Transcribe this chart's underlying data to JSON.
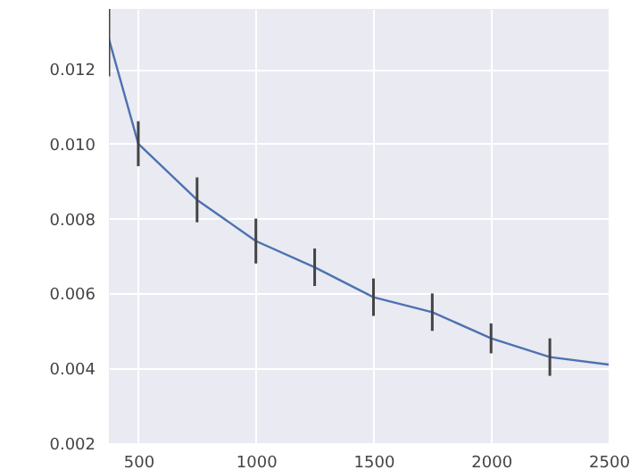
{
  "chart_data": {
    "type": "line",
    "x": [
      375,
      500,
      750,
      1000,
      1250,
      1500,
      1750,
      2000,
      2250,
      2500
    ],
    "series": [
      {
        "color": "#4c72b0",
        "values": [
          0.0128,
          0.01,
          0.0085,
          0.0074,
          0.0067,
          0.0059,
          0.0055,
          0.0048,
          0.0043,
          0.0041
        ],
        "errors": [
          0.001,
          0.0006,
          0.0006,
          0.0006,
          0.0005,
          0.0005,
          0.0005,
          0.0004,
          0.0005,
          null
        ]
      }
    ],
    "xlim": [
      375,
      2500
    ],
    "ylim": [
      0.002,
      0.0136
    ],
    "xticks": [
      500,
      1000,
      1500,
      2000,
      2500
    ],
    "yticks": [
      0.002,
      0.004,
      0.006,
      0.008,
      {
        "value": 0.01,
        "label": "0.010"
      },
      0.012
    ],
    "grid": true,
    "marker": "none",
    "line_style": "solid"
  }
}
